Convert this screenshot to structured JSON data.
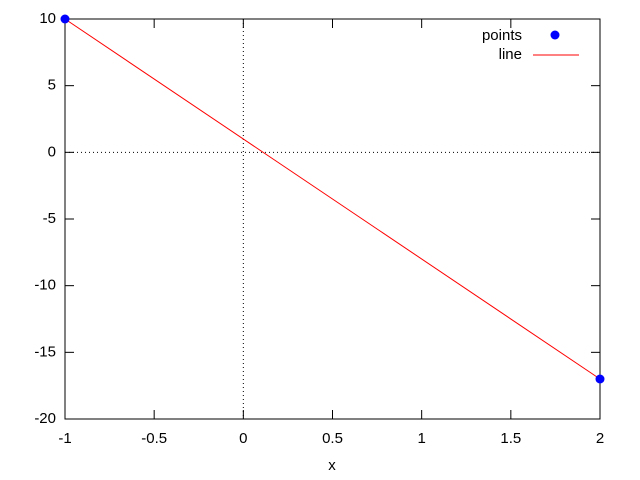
{
  "chart_data": {
    "type": "scatter",
    "xlabel": "x",
    "series": [
      {
        "name": "points",
        "color": "#0000ff",
        "mode": "points",
        "x": [
          -1,
          2
        ],
        "values": [
          10,
          -17
        ]
      },
      {
        "name": "line",
        "color": "#ff0000",
        "mode": "lines",
        "x": [
          -1,
          2
        ],
        "values": [
          10,
          -17
        ]
      }
    ],
    "xlim": [
      -1,
      2
    ],
    "xticks": [
      -1,
      -0.5,
      0,
      0.5,
      1,
      1.5,
      2
    ],
    "ylim": [
      -20,
      10
    ],
    "yticks": [
      -20,
      -15,
      -10,
      -5,
      0,
      5,
      10
    ],
    "zero_axes": true,
    "legend": "top-right"
  }
}
